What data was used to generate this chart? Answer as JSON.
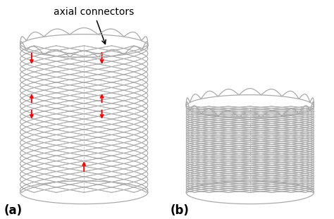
{
  "label_a": "(a)",
  "label_b": "(b)",
  "annotation_text": "axial connectors",
  "bg_color": "#ffffff",
  "mesh_color": "#aaaaaa",
  "arrow_color": "red",
  "annotation_arrow_color": "black",
  "font_size_label": 12,
  "font_size_annotation": 10,
  "fig_width": 4.74,
  "fig_height": 3.11,
  "dpi": 100
}
